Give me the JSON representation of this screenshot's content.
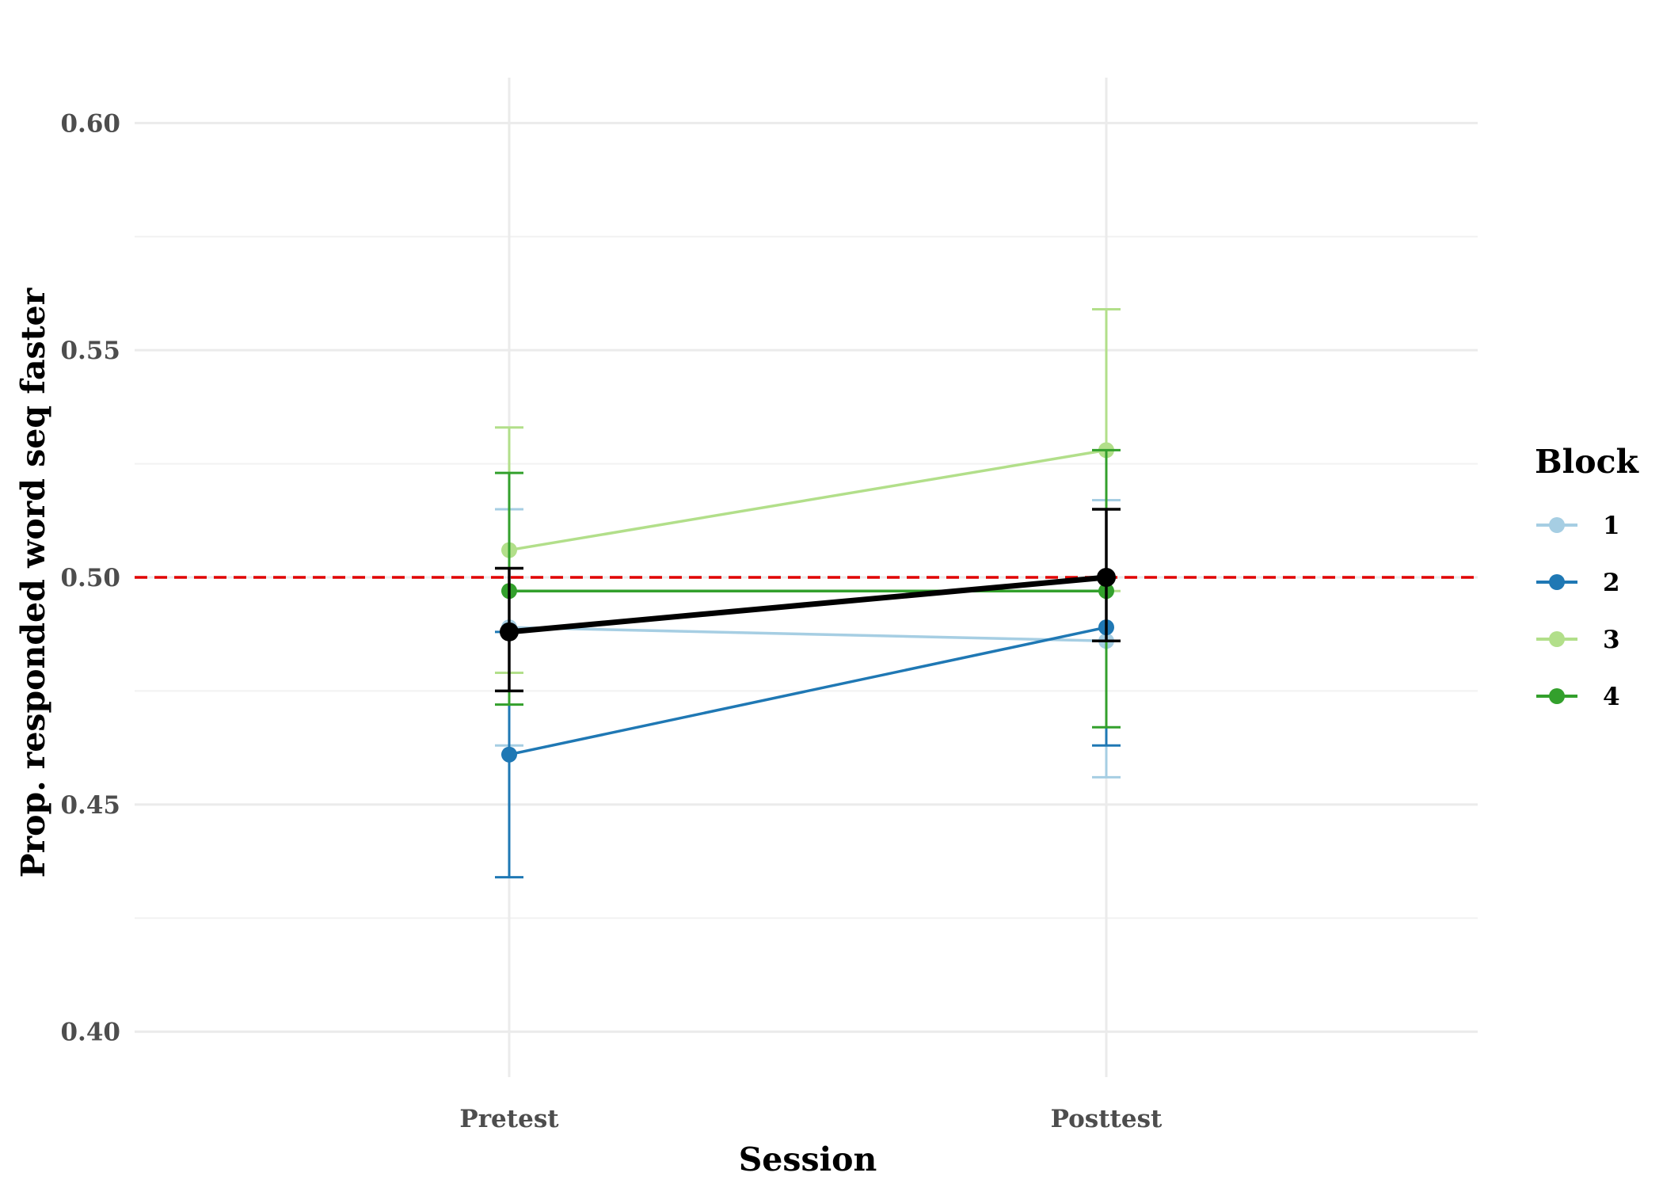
{
  "chart_data": {
    "type": "line",
    "xlabel": "Session",
    "ylabel": "Prop. responded word seq faster",
    "categories": [
      "Pretest",
      "Posttest"
    ],
    "ylim": [
      0.39,
      0.61
    ],
    "y_ticks": [
      "0.40",
      "0.45",
      "0.50",
      "0.55",
      "0.60"
    ],
    "y_tick_values": [
      0.4,
      0.45,
      0.5,
      0.55,
      0.6
    ],
    "grid": true,
    "reference_line": {
      "y": 0.5,
      "color": "#e00000",
      "style": "dashed"
    },
    "legend": {
      "title": "Block",
      "position": "right"
    },
    "series": [
      {
        "name": "1",
        "color": "#a6cee3",
        "values": [
          0.489,
          0.486
        ],
        "err_low": [
          0.463,
          0.456
        ],
        "err_high": [
          0.515,
          0.517
        ]
      },
      {
        "name": "2",
        "color": "#1f78b4",
        "values": [
          0.461,
          0.489
        ],
        "err_low": [
          0.434,
          0.463
        ],
        "err_high": [
          0.488,
          0.515
        ]
      },
      {
        "name": "3",
        "color": "#b2df8a",
        "values": [
          0.506,
          0.528
        ],
        "err_low": [
          0.479,
          0.497
        ],
        "err_high": [
          0.533,
          0.559
        ]
      },
      {
        "name": "4",
        "color": "#33a02c",
        "values": [
          0.497,
          0.497
        ],
        "err_low": [
          0.472,
          0.467
        ],
        "err_high": [
          0.523,
          0.528
        ]
      }
    ],
    "overall": {
      "color": "#000000",
      "values": [
        0.488,
        0.5
      ],
      "err_low": [
        0.475,
        0.486
      ],
      "err_high": [
        0.502,
        0.515
      ]
    }
  }
}
